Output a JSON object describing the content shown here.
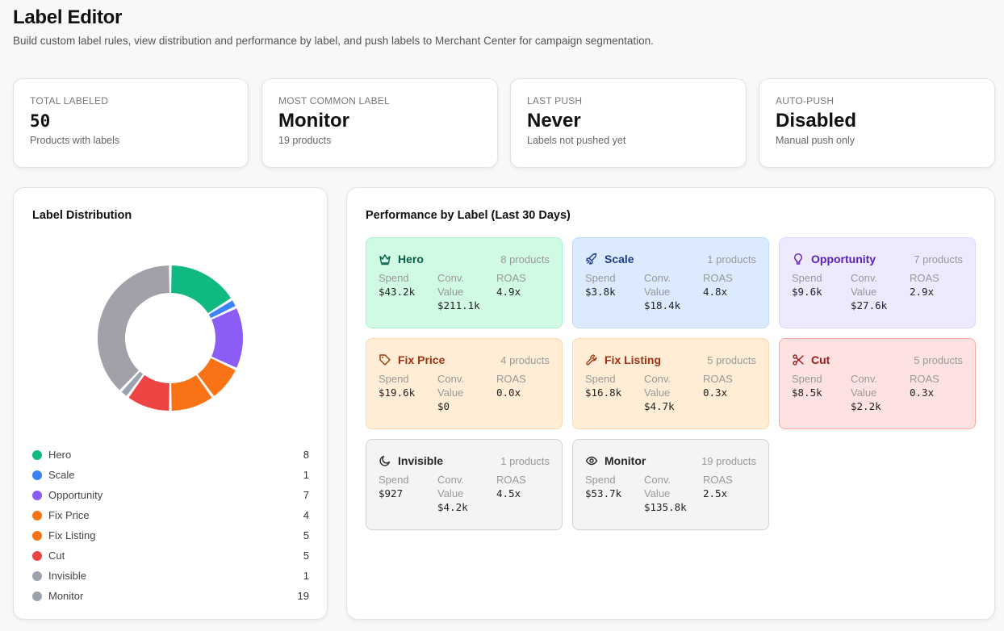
{
  "header": {
    "title": "Label Editor",
    "subtitle": "Build custom label rules, view distribution and performance by label, and push labels to Merchant Center for campaign segmentation."
  },
  "stats": [
    {
      "label": "TOTAL LABELED",
      "value": "50",
      "sub": "Products with labels"
    },
    {
      "label": "MOST COMMON LABEL",
      "value": "Monitor",
      "sub": "19 products"
    },
    {
      "label": "LAST PUSH",
      "value": "Never",
      "sub": "Labels not pushed yet"
    },
    {
      "label": "AUTO-PUSH",
      "value": "Disabled",
      "sub": "Manual push only"
    }
  ],
  "distribution": {
    "title": "Label Distribution",
    "items": [
      {
        "name": "Hero",
        "count": "8",
        "color": "#10b981"
      },
      {
        "name": "Scale",
        "count": "1",
        "color": "#3b82f6"
      },
      {
        "name": "Opportunity",
        "count": "7",
        "color": "#8b5cf6"
      },
      {
        "name": "Fix Price",
        "count": "4",
        "color": "#f97316"
      },
      {
        "name": "Fix Listing",
        "count": "5",
        "color": "#f97316"
      },
      {
        "name": "Cut",
        "count": "5",
        "color": "#ef4444"
      },
      {
        "name": "Invisible",
        "count": "1",
        "color": "#9ca3af"
      },
      {
        "name": "Monitor",
        "count": "19",
        "color": "#9ca3af"
      }
    ]
  },
  "chart_data": {
    "type": "pie",
    "categories": [
      "Hero",
      "Scale",
      "Opportunity",
      "Fix Price",
      "Fix Listing",
      "Cut",
      "Invisible",
      "Monitor"
    ],
    "values": [
      8,
      1,
      7,
      4,
      5,
      5,
      1,
      19
    ],
    "colors": [
      "#10b981",
      "#3b82f6",
      "#8b5cf6",
      "#f97316",
      "#f97316",
      "#ef4444",
      "#9ca3af",
      "#a1a1aa"
    ],
    "title": "Label Distribution",
    "donut": true,
    "legend": "bottom"
  },
  "performance": {
    "title": "Performance by Label (Last 30 Days)",
    "metric_labels": {
      "spend": "Spend",
      "conv_line1": "Conv.",
      "conv_line2": "Value",
      "roas": "ROAS"
    },
    "cards": [
      {
        "name": "Hero",
        "count": "8 products",
        "spend": "$43.2k",
        "conv": "$211.1k",
        "roas": "4.9x",
        "icon": "crown-icon",
        "bg": "#d1fae5",
        "border": "#a7f3d0",
        "color": "#065f46"
      },
      {
        "name": "Scale",
        "count": "1 products",
        "spend": "$3.8k",
        "conv": "$18.4k",
        "roas": "4.8x",
        "icon": "rocket-icon",
        "bg": "#dbeafe",
        "border": "#bfdbfe",
        "color": "#1e3a8a"
      },
      {
        "name": "Opportunity",
        "count": "7 products",
        "spend": "$9.6k",
        "conv": "$27.6k",
        "roas": "2.9x",
        "icon": "lightbulb-icon",
        "bg": "#ede9fe",
        "border": "#ddd6fe",
        "color": "#5b21b6"
      },
      {
        "name": "Fix Price",
        "count": "4 products",
        "spend": "$19.6k",
        "conv": "$0",
        "roas": "0.0x",
        "icon": "tag-icon",
        "bg": "#ffedd5",
        "border": "#fed7aa",
        "color": "#9a3412"
      },
      {
        "name": "Fix Listing",
        "count": "5 products",
        "spend": "$16.8k",
        "conv": "$4.7k",
        "roas": "0.3x",
        "icon": "wrench-icon",
        "bg": "#ffedd5",
        "border": "#fed7aa",
        "color": "#9a3412"
      },
      {
        "name": "Cut",
        "count": "5 products",
        "spend": "$8.5k",
        "conv": "$2.2k",
        "roas": "0.3x",
        "icon": "scissors-icon",
        "bg": "#fee2e2",
        "border": "#fca5a5",
        "color": "#991b1b"
      },
      {
        "name": "Invisible",
        "count": "1 products",
        "spend": "$927",
        "conv": "$4.2k",
        "roas": "4.5x",
        "icon": "moon-icon",
        "bg": "#f4f4f5",
        "border": "#d4d4d8",
        "color": "#27272a"
      },
      {
        "name": "Monitor",
        "count": "19 products",
        "spend": "$53.7k",
        "conv": "$135.8k",
        "roas": "2.5x",
        "icon": "eye-icon",
        "bg": "#f4f4f5",
        "border": "#d4d4d8",
        "color": "#27272a"
      }
    ]
  }
}
